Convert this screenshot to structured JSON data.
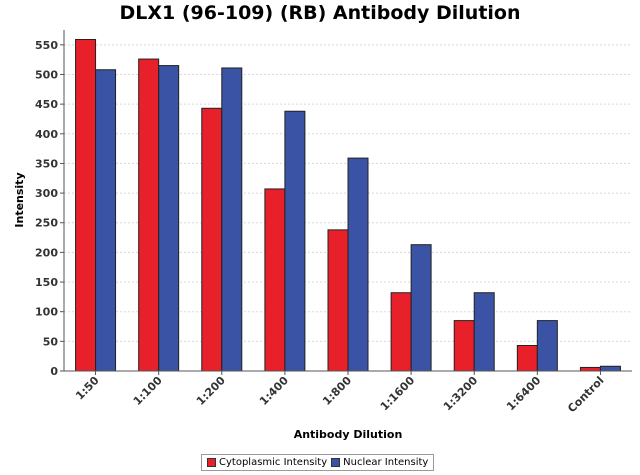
{
  "chart_data": {
    "type": "bar",
    "title": "DLX1 (96-109) (RB) Antibody Dilution",
    "xlabel": "Antibody Dilution",
    "ylabel": "Intensity",
    "categories": [
      "1:50",
      "1:100",
      "1:200",
      "1:400",
      "1:800",
      "1:1600",
      "1:3200",
      "1:6400",
      "Control"
    ],
    "series": [
      {
        "name": "Cytoplasmic Intensity",
        "color": "#e8202a",
        "values": [
          559,
          526,
          443,
          307,
          238,
          132,
          85,
          43,
          6
        ]
      },
      {
        "name": "Nuclear Intensity",
        "color": "#3a53a4",
        "values": [
          508,
          515,
          511,
          438,
          359,
          213,
          132,
          85,
          8
        ]
      }
    ],
    "ylim": [
      0,
      575
    ],
    "yticks": [
      0,
      50,
      100,
      150,
      200,
      250,
      300,
      350,
      400,
      450,
      500,
      550
    ],
    "grid": true,
    "legend_position": "bottom"
  }
}
